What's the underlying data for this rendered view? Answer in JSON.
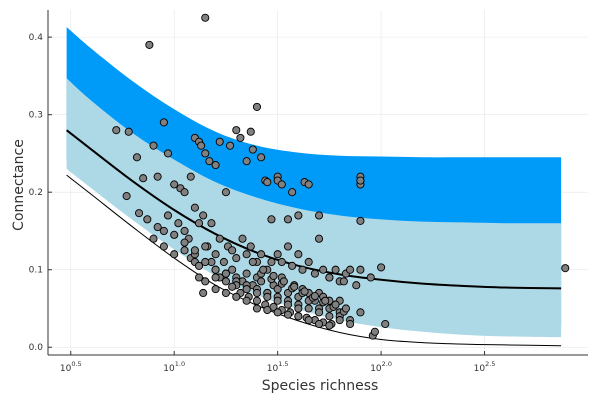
{
  "chart_data": {
    "type": "scatter",
    "xlabel": "Species richness",
    "ylabel": "Connectance",
    "x_scale": "log10",
    "xlim_log10": [
      0.39,
      3.0
    ],
    "ylim": [
      -0.01,
      0.435
    ],
    "grid": true,
    "legend": "none",
    "x_ticks": [
      {
        "base": "10",
        "exp": "0.5",
        "log10": 0.5
      },
      {
        "base": "10",
        "exp": "1.0",
        "log10": 1.0
      },
      {
        "base": "10",
        "exp": "1.5",
        "log10": 1.5
      },
      {
        "base": "10",
        "exp": "2.0",
        "log10": 2.0
      },
      {
        "base": "10",
        "exp": "2.5",
        "log10": 2.5
      }
    ],
    "y_ticks": [
      {
        "label": "0.0",
        "value": 0.0
      },
      {
        "label": "0.1",
        "value": 0.1
      },
      {
        "label": "0.2",
        "value": 0.2
      },
      {
        "label": "0.3",
        "value": 0.3
      },
      {
        "label": "0.4",
        "value": 0.4
      }
    ],
    "colors": {
      "outer_band": "#009af9",
      "inner_band": "#add8e6",
      "mean_line": "#000000",
      "lower_line": "#000000",
      "points_fill": "#808080",
      "points_stroke": "#000000",
      "grid": "#e6e6e6",
      "axis": "#333333"
    },
    "band_outer": {
      "log10_x": [
        0.48,
        0.6,
        0.8,
        1.0,
        1.2,
        1.4,
        1.6,
        1.8,
        2.0,
        2.2,
        2.4,
        2.6,
        2.87
      ],
      "upper": [
        0.413,
        0.385,
        0.343,
        0.307,
        0.278,
        0.26,
        0.251,
        0.247,
        0.246,
        0.245,
        0.245,
        0.245,
        0.245
      ],
      "lower": [
        0.24,
        0.215,
        0.175,
        0.135,
        0.1,
        0.075,
        0.056,
        0.044,
        0.037,
        0.033,
        0.03,
        0.028,
        0.027
      ]
    },
    "band_inner": {
      "log10_x": [
        0.48,
        0.6,
        0.8,
        1.0,
        1.2,
        1.4,
        1.6,
        1.8,
        2.0,
        2.2,
        2.4,
        2.6,
        2.87
      ],
      "upper": [
        0.347,
        0.318,
        0.276,
        0.242,
        0.213,
        0.193,
        0.179,
        0.17,
        0.165,
        0.162,
        0.161,
        0.16,
        0.16
      ],
      "lower": [
        0.23,
        0.205,
        0.164,
        0.126,
        0.092,
        0.067,
        0.049,
        0.035,
        0.026,
        0.02,
        0.016,
        0.014,
        0.013
      ]
    },
    "mean_line": {
      "log10_x": [
        0.48,
        0.6,
        0.8,
        1.0,
        1.2,
        1.4,
        1.6,
        1.8,
        2.0,
        2.2,
        2.4,
        2.6,
        2.87
      ],
      "y": [
        0.28,
        0.255,
        0.214,
        0.177,
        0.146,
        0.122,
        0.105,
        0.094,
        0.087,
        0.082,
        0.079,
        0.077,
        0.076
      ]
    },
    "lower_line": {
      "log10_x": [
        0.48,
        0.6,
        0.8,
        1.0,
        1.2,
        1.4,
        1.6,
        1.8,
        2.0,
        2.2,
        2.4,
        2.6,
        2.87
      ],
      "y": [
        0.222,
        0.197,
        0.155,
        0.115,
        0.08,
        0.054,
        0.034,
        0.019,
        0.01,
        0.006,
        0.004,
        0.003,
        0.002
      ]
    },
    "points": {
      "log10_x": [
        0.72,
        0.78,
        0.82,
        0.85,
        0.88,
        0.9,
        0.92,
        0.95,
        0.97,
        1.0,
        1.03,
        1.05,
        1.08,
        1.1,
        1.12,
        1.13,
        1.15,
        1.15,
        1.17,
        1.2,
        1.22,
        1.25,
        1.27,
        1.3,
        1.32,
        1.35,
        1.37,
        1.38,
        1.4,
        1.42,
        1.44,
        1.45,
        1.47,
        1.5,
        1.5,
        1.52,
        1.55,
        1.57,
        1.6,
        1.63,
        1.65,
        1.7,
        1.9,
        1.9,
        1.9,
        1.9,
        1.9,
        0.77,
        0.83,
        0.87,
        0.92,
        0.95,
        0.97,
        1.0,
        1.02,
        1.05,
        1.07,
        1.1,
        1.12,
        1.14,
        1.16,
        1.18,
        1.2,
        1.22,
        1.24,
        1.26,
        1.28,
        1.3,
        1.33,
        1.35,
        1.37,
        1.4,
        1.42,
        1.45,
        1.47,
        1.5,
        1.52,
        1.55,
        1.57,
        1.6,
        1.62,
        1.65,
        1.68,
        1.7,
        1.72,
        1.75,
        1.78,
        1.8,
        1.83,
        1.85,
        1.88,
        1.9,
        1.95,
        2.0,
        1.75,
        1.82,
        0.9,
        0.95,
        1.0,
        1.05,
        1.08,
        1.1,
        1.12,
        1.15,
        1.18,
        1.2,
        1.22,
        1.25,
        1.28,
        1.3,
        1.33,
        1.35,
        1.38,
        1.4,
        1.42,
        1.45,
        1.48,
        1.5,
        1.52,
        1.55,
        1.58,
        1.6,
        1.62,
        1.65,
        1.68,
        1.7,
        1.72,
        1.75,
        1.78,
        1.8,
        1.05,
        1.1,
        1.15,
        1.2,
        1.25,
        1.3,
        1.35,
        1.4,
        1.45,
        1.5,
        1.55,
        1.6,
        1.65,
        1.7,
        1.75,
        1.8,
        1.2,
        1.25,
        1.3,
        1.35,
        1.4,
        1.45,
        1.5,
        1.55,
        1.6,
        1.65,
        1.7,
        1.75,
        1.8,
        1.85,
        1.28,
        1.32,
        1.36,
        1.4,
        1.44,
        1.48,
        1.52,
        1.56,
        1.6,
        1.64,
        1.68,
        1.72,
        1.76,
        1.15,
        1.2,
        1.25,
        1.3,
        1.35,
        1.4,
        1.45,
        1.5,
        1.55,
        1.6,
        1.65,
        1.7,
        1.75,
        1.8,
        1.85,
        1.9,
        1.42,
        1.47,
        1.52,
        1.57,
        1.62,
        1.67,
        1.72,
        1.77,
        1.82,
        1.38,
        1.43,
        1.48,
        1.53,
        1.58,
        1.63,
        1.68,
        1.73,
        1.78,
        1.83,
        1.96,
        1.97,
        2.02,
        2.89,
        1.1,
        1.12,
        1.14
      ],
      "y": [
        0.28,
        0.278,
        0.245,
        0.218,
        0.39,
        0.26,
        0.22,
        0.29,
        0.25,
        0.21,
        0.205,
        0.2,
        0.22,
        0.27,
        0.265,
        0.26,
        0.25,
        0.425,
        0.24,
        0.235,
        0.265,
        0.2,
        0.26,
        0.28,
        0.27,
        0.24,
        0.278,
        0.255,
        0.31,
        0.245,
        0.215,
        0.213,
        0.165,
        0.22,
        0.215,
        0.21,
        0.165,
        0.2,
        0.17,
        0.213,
        0.21,
        0.17,
        0.215,
        0.22,
        0.21,
        0.215,
        0.163,
        0.195,
        0.173,
        0.165,
        0.155,
        0.15,
        0.17,
        0.145,
        0.16,
        0.15,
        0.14,
        0.18,
        0.16,
        0.17,
        0.13,
        0.16,
        0.12,
        0.14,
        0.11,
        0.13,
        0.125,
        0.115,
        0.14,
        0.12,
        0.13,
        0.11,
        0.12,
        0.1,
        0.11,
        0.12,
        0.11,
        0.13,
        0.105,
        0.12,
        0.1,
        0.11,
        0.095,
        0.14,
        0.1,
        0.09,
        0.1,
        0.085,
        0.095,
        0.1,
        0.08,
        0.1,
        0.09,
        0.103,
        0.09,
        0.085,
        0.14,
        0.13,
        0.12,
        0.125,
        0.115,
        0.11,
        0.105,
        0.13,
        0.11,
        0.1,
        0.09,
        0.095,
        0.1,
        0.09,
        0.085,
        0.095,
        0.08,
        0.09,
        0.085,
        0.07,
        0.08,
        0.075,
        0.09,
        0.07,
        0.08,
        0.065,
        0.075,
        0.07,
        0.06,
        0.07,
        0.065,
        0.06,
        0.055,
        0.06,
        0.135,
        0.12,
        0.11,
        0.1,
        0.095,
        0.085,
        0.08,
        0.075,
        0.07,
        0.065,
        0.06,
        0.055,
        0.06,
        0.05,
        0.05,
        0.045,
        0.09,
        0.085,
        0.08,
        0.075,
        0.07,
        0.065,
        0.06,
        0.055,
        0.05,
        0.05,
        0.045,
        0.04,
        0.04,
        0.035,
        0.078,
        0.07,
        0.065,
        0.06,
        0.055,
        0.052,
        0.048,
        0.045,
        0.04,
        0.038,
        0.035,
        0.032,
        0.03,
        0.085,
        0.075,
        0.07,
        0.065,
        0.06,
        0.05,
        0.048,
        0.045,
        0.042,
        0.04,
        0.035,
        0.03,
        0.028,
        0.035,
        0.03,
        0.045,
        0.095,
        0.088,
        0.082,
        0.076,
        0.07,
        0.064,
        0.058,
        0.052,
        0.046,
        0.11,
        0.1,
        0.092,
        0.085,
        0.078,
        0.072,
        0.066,
        0.06,
        0.055,
        0.05,
        0.015,
        0.02,
        0.03,
        0.102,
        0.125,
        0.09,
        0.07
      ]
    }
  }
}
